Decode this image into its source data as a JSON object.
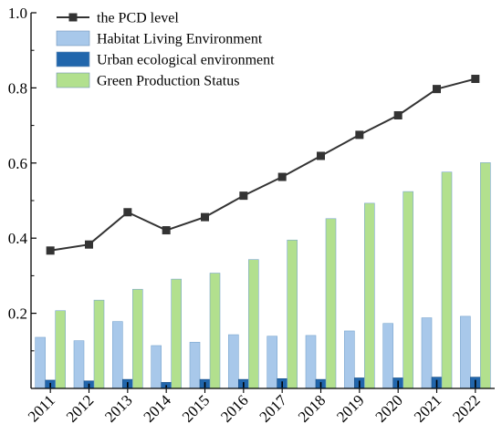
{
  "chart_data": {
    "type": "bar",
    "title": "",
    "xlabel": "",
    "ylabel": "",
    "categories": [
      "2011",
      "2012",
      "2013",
      "2014",
      "2015",
      "2016",
      "2017",
      "2018",
      "2019",
      "2020",
      "2021",
      "2022"
    ],
    "ylim": [
      0,
      1.0
    ],
    "y_ticks": [
      "0.2",
      "0.4",
      "0.6",
      "0.8",
      "1.0"
    ],
    "x_tick_rotation_deg": -45,
    "grid": false,
    "legend_position": "top-left",
    "series": [
      {
        "name": "Habitat Living Environment",
        "kind": "bar",
        "color": "#a8c8ea",
        "values": [
          0.136,
          0.127,
          0.178,
          0.114,
          0.123,
          0.143,
          0.139,
          0.141,
          0.153,
          0.173,
          0.188,
          0.192
        ]
      },
      {
        "name": "Urban ecological environment",
        "kind": "bar",
        "color": "#2166ac",
        "values": [
          0.022,
          0.02,
          0.024,
          0.016,
          0.024,
          0.024,
          0.026,
          0.024,
          0.028,
          0.028,
          0.03,
          0.03
        ]
      },
      {
        "name": "Green Production Status",
        "kind": "bar",
        "color": "#b2e08e",
        "values": [
          0.207,
          0.235,
          0.264,
          0.291,
          0.307,
          0.343,
          0.395,
          0.452,
          0.493,
          0.524,
          0.576,
          0.601
        ]
      },
      {
        "name": "the PCD level",
        "kind": "line",
        "color": "#333333",
        "marker": "square",
        "values": [
          0.367,
          0.383,
          0.469,
          0.421,
          0.456,
          0.513,
          0.563,
          0.619,
          0.675,
          0.727,
          0.797,
          0.824
        ]
      }
    ],
    "legend_order": [
      "the PCD level",
      "Habitat Living Environment",
      "Urban ecological environment",
      "Green Production Status"
    ]
  }
}
